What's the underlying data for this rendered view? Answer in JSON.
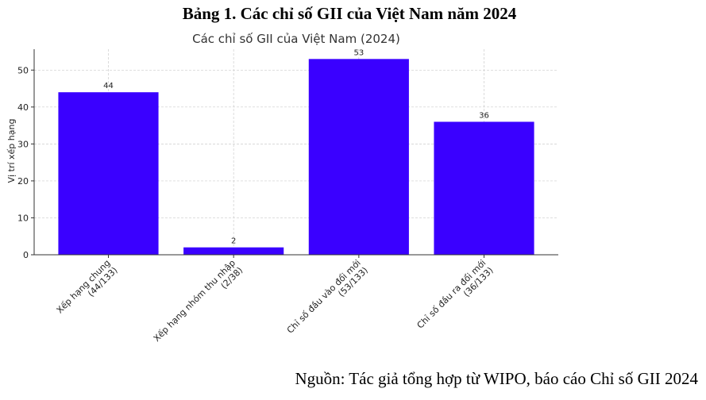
{
  "heading": "Bảng 1. Các chỉ số GII của Việt Nam năm 2024",
  "source": "Nguồn: Tác giả tổng hợp từ WIPO, báo cáo Chỉ số GII 2024",
  "chart_data": {
    "type": "bar",
    "title": "Các chỉ số GII của Việt Nam (2024)",
    "y_label": "Vị trí xếp hạng",
    "categories": [
      [
        "Xếp hạng chung",
        "(44/133)"
      ],
      [
        "Xếp hạng nhóm thu nhập",
        "(2/38)"
      ],
      [
        "Chỉ số đầu vào đổi mới",
        "(53/133)"
      ],
      [
        "Chỉ số đầu ra đổi mới",
        "(36/133)"
      ]
    ],
    "values": [
      44,
      2,
      53,
      36
    ],
    "color": "#3a00ff",
    "ylim": [
      0,
      55.65
    ],
    "yticks": [
      0,
      10,
      20,
      30,
      40,
      50
    ],
    "grid": true
  }
}
